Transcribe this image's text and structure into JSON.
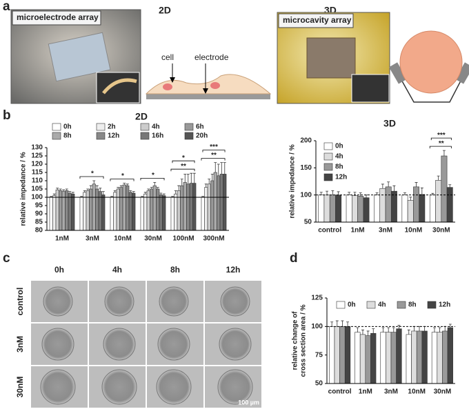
{
  "figure": {
    "panel_labels": [
      "a",
      "b",
      "c",
      "d"
    ],
    "panel_a": {
      "title_2d": "2D",
      "title_3d": "3D",
      "photo_2d_label": "microelectrode array",
      "photo_3d_label": "microcavity array",
      "cell_label": "cell",
      "electrode_label": "electrode"
    },
    "panel_c": {
      "columns": [
        "0h",
        "4h",
        "8h",
        "12h"
      ],
      "rows": [
        "control",
        "3nM",
        "30nM"
      ],
      "scale_bar": "100 µm"
    }
  },
  "chart_data": [
    {
      "type": "bar",
      "title": "2D",
      "ylabel": [
        "relative impedance / %"
      ],
      "categories": [
        "1nM",
        "3nM",
        "10nM",
        "30nM",
        "100nM",
        "300nM"
      ],
      "series": [
        {
          "name": "0h",
          "color": "#ffffff",
          "values": [
            100,
            100,
            100,
            100,
            100,
            100
          ],
          "errors": [
            0.5,
            0.5,
            0.5,
            0.5,
            0.5,
            0.5
          ]
        },
        {
          "name": "2h",
          "color": "#eeeeee",
          "values": [
            101,
            103,
            103,
            102,
            102,
            106
          ],
          "errors": [
            1,
            1,
            1,
            1,
            2,
            2
          ]
        },
        {
          "name": "4h",
          "color": "#cccccc",
          "values": [
            104.5,
            104,
            105,
            104,
            104,
            108
          ],
          "errors": [
            1,
            1,
            1,
            1,
            3,
            3
          ]
        },
        {
          "name": "6h",
          "color": "#999999",
          "values": [
            104,
            105,
            106,
            105,
            107,
            110
          ],
          "errors": [
            1,
            2,
            1,
            1,
            4,
            4
          ]
        },
        {
          "name": "8h",
          "color": "#aaaaaa",
          "values": [
            103.5,
            108,
            107.5,
            107,
            109,
            115
          ],
          "errors": [
            1,
            2,
            1,
            2,
            5,
            6
          ]
        },
        {
          "name": "12h",
          "color": "#888888",
          "values": [
            104,
            105,
            107,
            105,
            108,
            113
          ],
          "errors": [
            1,
            2,
            1,
            1,
            6,
            7
          ]
        },
        {
          "name": "16h",
          "color": "#777777",
          "values": [
            102.5,
            103.5,
            103,
            101.5,
            108.5,
            114
          ],
          "errors": [
            1,
            2,
            1,
            1,
            6,
            7
          ]
        },
        {
          "name": "20h",
          "color": "#555555",
          "values": [
            102,
            101.5,
            102.5,
            101,
            108.5,
            114
          ],
          "errors": [
            1,
            2,
            1,
            1,
            6,
            7
          ]
        }
      ],
      "annotations": [
        {
          "text": "*",
          "category": "3nM"
        },
        {
          "text": "*",
          "category": "10nM"
        },
        {
          "text": "*",
          "category": "30nM"
        },
        {
          "text": "**",
          "category": "100nM"
        },
        {
          "text": "*",
          "category": "100nM"
        },
        {
          "text": "**",
          "category": "300nM"
        },
        {
          "text": "***",
          "category": "300nM"
        }
      ],
      "reference_line": 100,
      "ylim": [
        80,
        130
      ],
      "yticks": [
        80,
        85,
        90,
        95,
        100,
        105,
        110,
        115,
        120,
        125,
        130
      ],
      "legend": "top"
    },
    {
      "type": "bar",
      "title": "3D",
      "ylabel": [
        "relative impedance / %"
      ],
      "categories": [
        "control",
        "1nM",
        "3nM",
        "10nM",
        "30nM"
      ],
      "series": [
        {
          "name": "0h",
          "color": "#ffffff",
          "values": [
            100,
            100,
            100,
            100,
            100
          ],
          "errors": [
            5,
            5,
            4,
            4,
            3
          ]
        },
        {
          "name": "4h",
          "color": "#dddddd",
          "values": [
            100,
            99,
            112,
            90,
            127
          ],
          "errors": [
            7,
            6,
            8,
            6,
            8
          ]
        },
        {
          "name": "8h",
          "color": "#999999",
          "values": [
            100,
            98,
            115,
            115,
            172
          ],
          "errors": [
            8,
            6,
            9,
            8,
            10
          ]
        },
        {
          "name": "12h",
          "color": "#444444",
          "values": [
            100,
            95,
            107,
            101,
            114
          ],
          "errors": [
            6,
            5,
            10,
            12,
            5
          ]
        }
      ],
      "annotations": [
        {
          "text": "**",
          "category": "30nM"
        },
        {
          "text": "***",
          "category": "30nM"
        }
      ],
      "reference_line": 100,
      "ylim": [
        50,
        200
      ],
      "yticks": [
        50,
        100,
        150,
        200
      ],
      "legend": "upper left"
    },
    {
      "type": "bar",
      "ylabel": [
        "relative change of",
        "cross section area / %"
      ],
      "categories": [
        "control",
        "1nM",
        "3nM",
        "10nM",
        "30nM"
      ],
      "series": [
        {
          "name": "0h",
          "color": "#ffffff",
          "values": [
            100,
            95,
            95,
            93,
            95
          ],
          "errors": [
            4,
            4,
            4,
            4,
            4
          ]
        },
        {
          "name": "4h",
          "color": "#dddddd",
          "values": [
            100,
            93,
            95,
            96,
            95
          ],
          "errors": [
            5,
            4,
            4,
            4,
            4
          ]
        },
        {
          "name": "8h",
          "color": "#999999",
          "values": [
            100,
            92,
            95,
            96,
            96
          ],
          "errors": [
            5,
            4,
            4,
            4,
            4
          ]
        },
        {
          "name": "12h",
          "color": "#444444",
          "values": [
            100,
            94,
            98,
            96,
            99
          ],
          "errors": [
            4,
            4,
            3,
            4,
            3
          ]
        }
      ],
      "reference_line": 100,
      "ylim": [
        50,
        125
      ],
      "yticks": [
        50,
        75,
        100,
        125
      ],
      "legend": "top"
    }
  ]
}
